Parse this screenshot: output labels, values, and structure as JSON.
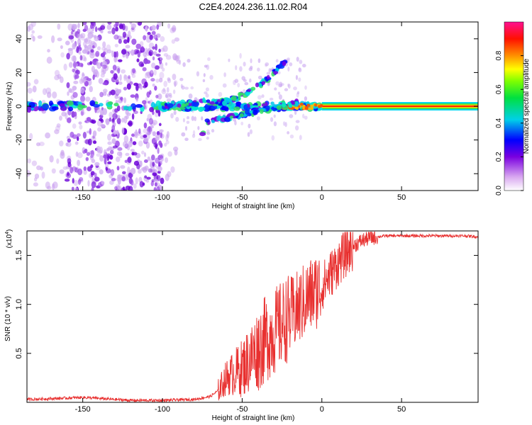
{
  "chart_data": [
    {
      "type": "heatmap",
      "title": "C2E4.2024.236.11.02.R04",
      "xlabel": "Height of straight line (km)",
      "ylabel": "Frequency (Hz)",
      "xlim": [
        -185,
        98
      ],
      "ylim": [
        -50,
        50
      ],
      "xticks": [
        -150,
        -100,
        -50,
        0,
        50
      ],
      "yticks": [
        -40,
        -20,
        0,
        20,
        40
      ],
      "colorbar": {
        "label": "Normalized spectral amplitude",
        "range": [
          0,
          1
        ],
        "ticks": [
          0.0,
          0.2,
          0.4,
          0.6,
          0.8
        ],
        "tick_labels": [
          "0.0",
          "0.2",
          "0.4",
          "0.6",
          "0.8"
        ]
      },
      "features": [
        {
          "name": "main-band",
          "x_range": [
            -185,
            98
          ],
          "frequency_hz": 0
        },
        {
          "name": "upper-branch",
          "from": [
            -75,
            3
          ],
          "to": [
            -20,
            28
          ]
        },
        {
          "name": "lower-branch",
          "from": [
            -75,
            -17
          ],
          "to": [
            -20,
            2
          ]
        },
        {
          "name": "noise-region",
          "x_range": [
            -160,
            -100
          ],
          "frequency_range": [
            -50,
            50
          ]
        }
      ]
    },
    {
      "type": "line",
      "title": "",
      "xlabel": "Height of straight line (km)",
      "ylabel": "SNR (10 * v/v)",
      "scale_label_base": "(x10",
      "scale_label_exp": "4",
      "scale_label_end": ")",
      "xlim": [
        -185,
        98
      ],
      "ylim": [
        0.0,
        1.75
      ],
      "xticks": [
        -150,
        -100,
        -50,
        0,
        50
      ],
      "yticks": [
        0.5,
        1.0,
        1.5
      ],
      "ytick_labels": [
        "0.5",
        "1.0",
        "1.5"
      ],
      "series": [
        {
          "name": "SNR",
          "color": "#e8302f",
          "x": [
            -185,
            -165,
            -150,
            -120,
            -100,
            -80,
            -70,
            -65,
            -60,
            -55,
            -50,
            -45,
            -40,
            -35,
            -30,
            -25,
            -20,
            -15,
            -10,
            -5,
            0,
            5,
            10,
            15,
            20,
            25,
            30,
            35,
            40,
            50,
            60,
            70,
            80,
            90,
            98
          ],
          "y": [
            0.03,
            0.04,
            0.05,
            0.02,
            0.02,
            0.03,
            0.06,
            0.12,
            0.25,
            0.3,
            0.35,
            0.45,
            0.55,
            0.65,
            0.72,
            0.8,
            0.88,
            0.95,
            1.05,
            1.12,
            1.18,
            1.3,
            1.42,
            1.52,
            1.6,
            1.65,
            1.68,
            1.69,
            1.7,
            1.7,
            1.7,
            1.7,
            1.7,
            1.7,
            1.69
          ]
        }
      ]
    }
  ]
}
